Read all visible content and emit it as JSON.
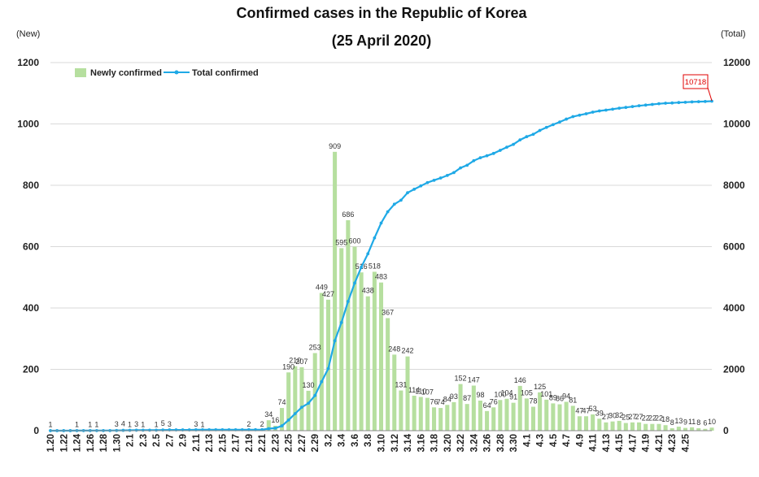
{
  "chart_data": {
    "type": "bar+line",
    "title": "Confirmed cases in the Republic of Korea",
    "subtitle": "(25 April 2020)",
    "left_axis_unit": "(New)",
    "right_axis_unit": "(Total)",
    "y_left": {
      "min": 0,
      "max": 1200,
      "ticks": [
        0,
        200,
        400,
        600,
        800,
        1000,
        1200
      ]
    },
    "y_right": {
      "min": 0,
      "max": 12000,
      "ticks": [
        0,
        2000,
        4000,
        6000,
        8000,
        10000,
        12000
      ]
    },
    "legend": {
      "bar": "Newly confirmed",
      "line": "Total confirmed",
      "placement": "top-left"
    },
    "colors": {
      "bar": "#b6df9f",
      "line": "#1fa9e6",
      "highlight": "#e00000",
      "grid": "#d9d9d9"
    },
    "x_tick_labels": [
      "1.20",
      "1.22",
      "1.24",
      "1.26",
      "1.28",
      "1.30",
      "2.1",
      "2.3",
      "2.5",
      "2.7",
      "2.9",
      "2.11",
      "2.13",
      "2.15",
      "2.17",
      "2.19",
      "2.21",
      "2.23",
      "2.25",
      "2.27",
      "2.29",
      "3.2",
      "3.4",
      "3.6",
      "3.8",
      "3.10",
      "3.12",
      "3.14",
      "3.16",
      "3.18",
      "3.20",
      "3.22",
      "3.24",
      "3.26",
      "3.28",
      "3.30",
      "4.1",
      "4.3",
      "4.5",
      "4.7",
      "4.9",
      "4.11",
      "4.13",
      "4.15",
      "4.17",
      "4.19",
      "4.21",
      "4.23",
      "4.25"
    ],
    "new_cases": [
      1,
      0,
      0,
      0,
      1,
      0,
      1,
      1,
      0,
      0,
      3,
      4,
      1,
      3,
      1,
      0,
      1,
      5,
      3,
      0,
      0,
      0,
      3,
      1,
      0,
      0,
      0,
      0,
      0,
      0,
      2,
      0,
      2,
      34,
      16,
      74,
      190,
      210,
      207,
      130,
      253,
      449,
      427,
      909,
      595,
      686,
      600,
      516,
      438,
      518,
      483,
      367,
      248,
      131,
      242,
      114,
      110,
      107,
      76,
      74,
      84,
      93,
      152,
      87,
      147,
      98,
      64,
      76,
      100,
      104,
      91,
      146,
      105,
      78,
      125,
      101,
      89,
      86,
      94,
      81,
      47,
      47,
      53,
      39,
      27,
      30,
      32,
      25,
      27,
      27,
      22,
      22,
      22,
      18,
      8,
      13,
      9,
      11,
      8,
      6,
      10
    ],
    "data_labels": [
      "1",
      "",
      "",
      "",
      "1",
      "",
      "1",
      "1",
      "",
      "",
      "3",
      "4",
      "1",
      "3",
      "1",
      "",
      "1",
      "5",
      "3",
      "",
      "",
      "",
      "3",
      "1",
      "",
      "",
      "",
      "",
      "",
      "",
      "2",
      "",
      "2",
      "34",
      "16",
      "74",
      "190",
      "210",
      "207",
      "130",
      "253",
      "449",
      "427",
      "909",
      "595",
      "686",
      "600",
      "516",
      "438",
      "518",
      "483",
      "367",
      "248",
      "131",
      "242",
      "114",
      "110",
      "107",
      "76",
      "74",
      "84",
      "93",
      "152",
      "87",
      "147",
      "98",
      "64",
      "76",
      "100",
      "104",
      "91",
      "146",
      "105",
      "78",
      "125",
      "101",
      "89",
      "86",
      "94",
      "81",
      "47",
      "47",
      "53",
      "39",
      "27",
      "30",
      "32",
      "25",
      "27",
      "27",
      "22",
      "22",
      "22",
      "18",
      "8",
      "13",
      "9",
      "11",
      "8",
      "6",
      "10"
    ],
    "final_total": 10718,
    "final_total_label": "10718"
  }
}
